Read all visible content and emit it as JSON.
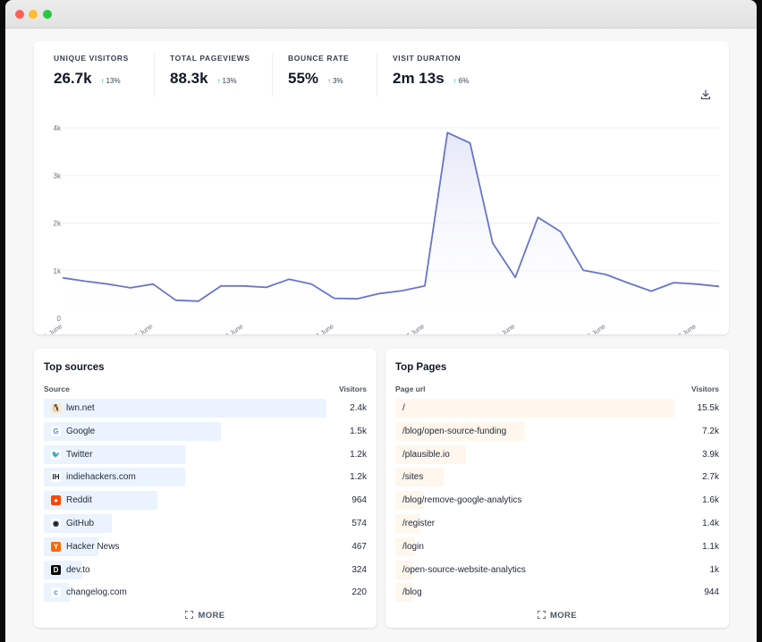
{
  "stats": [
    {
      "label": "UNIQUE VISITORS",
      "value": "26.7k",
      "change": "13%",
      "direction": "up",
      "color": "#10b981"
    },
    {
      "label": "TOTAL PAGEVIEWS",
      "value": "88.3k",
      "change": "13%",
      "direction": "up",
      "color": "#10b981"
    },
    {
      "label": "BOUNCE RATE",
      "value": "55%",
      "change": "3%",
      "direction": "up",
      "color": "#ef4444"
    },
    {
      "label": "VISIT DURATION",
      "value": "2m 13s",
      "change": "6%",
      "direction": "up",
      "color": "#10b981"
    }
  ],
  "icons": {
    "download": "download-icon",
    "more": "expand-icon"
  },
  "colors": {
    "line": "#6875c9",
    "fill": "#e4e7f7",
    "source_bar": "#eaf3fe",
    "page_bar": "#fff6ed"
  },
  "chart_data": {
    "type": "area",
    "x": [
      "1 June",
      "2 June",
      "3 June",
      "4 June",
      "5 June",
      "6 June",
      "7 June",
      "8 June",
      "9 June",
      "10 June",
      "11 June",
      "12 June",
      "13 June",
      "14 June",
      "15 June",
      "16 June",
      "17 June",
      "18 June",
      "19 June",
      "20 June",
      "21 June",
      "22 June",
      "23 June",
      "24 June",
      "25 June",
      "26 June",
      "27 June",
      "28 June",
      "29 June",
      "30 June"
    ],
    "x_ticks": [
      "1 June",
      "5 June",
      "9 June",
      "13 June",
      "17 June",
      "21 June",
      "25 June",
      "29 June"
    ],
    "y_ticks": [
      "0",
      "1k",
      "2k",
      "3k",
      "4k"
    ],
    "ylim": [
      0,
      4000
    ],
    "series": [
      {
        "values": [
          850,
          780,
          720,
          640,
          720,
          380,
          360,
          680,
          680,
          650,
          820,
          720,
          420,
          410,
          520,
          580,
          680,
          3900,
          3680,
          1580,
          860,
          2120,
          1820,
          1010,
          920,
          740,
          570,
          750,
          720,
          670
        ]
      }
    ],
    "grid": true,
    "legend": false
  },
  "sources": {
    "title": "Top sources",
    "col_source": "Source",
    "col_visitors": "Visitors",
    "more": "MORE",
    "items": [
      {
        "name": "lwn.net",
        "value": "2.4k",
        "visitors": 2400,
        "icon": "lwn-icon"
      },
      {
        "name": "Google",
        "value": "1.5k",
        "visitors": 1500,
        "icon": "google-icon"
      },
      {
        "name": "Twitter",
        "value": "1.2k",
        "visitors": 1200,
        "icon": "twitter-icon"
      },
      {
        "name": "indiehackers.com",
        "value": "1.2k",
        "visitors": 1200,
        "icon": "indiehackers-icon"
      },
      {
        "name": "Reddit",
        "value": "964",
        "visitors": 964,
        "icon": "reddit-icon"
      },
      {
        "name": "GitHub",
        "value": "574",
        "visitors": 574,
        "icon": "github-icon"
      },
      {
        "name": "Hacker News",
        "value": "467",
        "visitors": 467,
        "icon": "hacker-news-icon"
      },
      {
        "name": "dev.to",
        "value": "324",
        "visitors": 324,
        "icon": "devto-icon"
      },
      {
        "name": "changelog.com",
        "value": "220",
        "visitors": 220,
        "icon": "changelog-icon"
      }
    ]
  },
  "pages": {
    "title": "Top Pages",
    "col_page": "Page url",
    "col_visitors": "Visitors",
    "more": "MORE",
    "items": [
      {
        "path": "/",
        "value": "15.5k",
        "visitors": 15500
      },
      {
        "path": "/blog/open-source-funding",
        "value": "7.2k",
        "visitors": 7200
      },
      {
        "path": "/plausible.io",
        "value": "3.9k",
        "visitors": 3900
      },
      {
        "path": "/sites",
        "value": "2.7k",
        "visitors": 2700
      },
      {
        "path": "/blog/remove-google-analytics",
        "value": "1.6k",
        "visitors": 1600
      },
      {
        "path": "/register",
        "value": "1.4k",
        "visitors": 1400
      },
      {
        "path": "/login",
        "value": "1.1k",
        "visitors": 1100
      },
      {
        "path": "/open-source-website-analytics",
        "value": "1k",
        "visitors": 1000
      },
      {
        "path": "/blog",
        "value": "944",
        "visitors": 944
      }
    ]
  }
}
